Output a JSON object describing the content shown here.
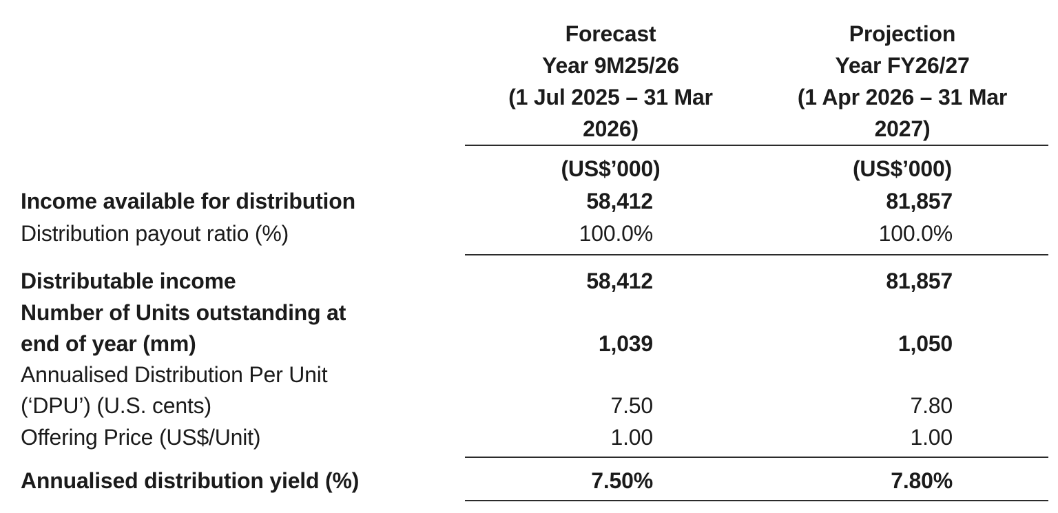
{
  "document": {
    "background": "#ffffff",
    "text_color": "#1b1b1b",
    "rule_color": "#2b2b2b"
  },
  "table": {
    "columns": [
      {
        "scenario": "Forecast",
        "header_lines": [
          "Forecast",
          "Year 9M25/26",
          "(1 Jul 2025 – 31 Mar",
          "2026)"
        ],
        "unit": "(US$’000)"
      },
      {
        "scenario": "Projection",
        "header_lines": [
          "Projection",
          "Year FY26/27",
          "(1 Apr 2026 – 31 Mar",
          "2027)"
        ],
        "unit": "(US$’000)"
      }
    ],
    "rows": [
      {
        "label_lines": [
          "Income available for distribution"
        ],
        "emphasis": "bold",
        "values": [
          "58,412",
          "81,857"
        ]
      },
      {
        "label_lines": [
          "Distribution payout ratio (%)"
        ],
        "emphasis": "regular",
        "values": [
          "100.0%",
          "100.0%"
        ]
      },
      {
        "label_lines": [
          "Distributable income"
        ],
        "emphasis": "bold",
        "values": [
          "58,412",
          "81,857"
        ]
      },
      {
        "label_lines": [
          "Number of Units outstanding at",
          "end of year (mm)"
        ],
        "emphasis": "bold",
        "values": [
          "1,039",
          "1,050"
        ]
      },
      {
        "label_lines": [
          "Annualised Distribution Per Unit",
          "(‘DPU’) (U.S. cents)"
        ],
        "emphasis": "regular",
        "values": [
          "7.50",
          "7.80"
        ]
      },
      {
        "label_lines": [
          "Offering Price (US$/Unit)"
        ],
        "emphasis": "regular",
        "values": [
          "1.00",
          "1.00"
        ]
      },
      {
        "label_lines": [
          "Annualised distribution yield (%)"
        ],
        "emphasis": "bold",
        "values": [
          "7.50%",
          "7.80%"
        ]
      }
    ]
  }
}
